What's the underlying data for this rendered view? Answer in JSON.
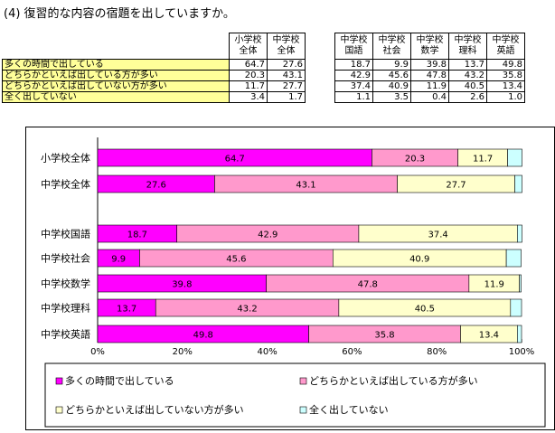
{
  "title": "(4) 復習的な内容の宿題を出していますか。",
  "table": {
    "columns": [
      {
        "line1": "小学校",
        "line2": "全体"
      },
      {
        "line1": "中学校",
        "line2": "全体"
      },
      {
        "line1": "中学校",
        "line2": "国語"
      },
      {
        "line1": "中学校",
        "line2": "社会"
      },
      {
        "line1": "中学校",
        "line2": "数学"
      },
      {
        "line1": "中学校",
        "line2": "理科"
      },
      {
        "line1": "中学校",
        "line2": "英語"
      }
    ],
    "rows": [
      {
        "label": "多くの時間で出している",
        "values": [
          "64.7",
          "27.6",
          "18.7",
          "9.9",
          "39.8",
          "13.7",
          "49.8"
        ]
      },
      {
        "label": "どちらかといえば出している方が多い",
        "values": [
          "20.3",
          "43.1",
          "42.9",
          "45.6",
          "47.8",
          "43.2",
          "35.8"
        ]
      },
      {
        "label": "どちらかといえば出していない方が多い",
        "values": [
          "11.7",
          "27.7",
          "37.4",
          "40.9",
          "11.9",
          "40.5",
          "13.4"
        ]
      },
      {
        "label": "全く出していない",
        "values": [
          "3.4",
          "1.7",
          "1.1",
          "3.5",
          "0.4",
          "2.6",
          "1.0"
        ]
      }
    ]
  },
  "chart_data": {
    "type": "bar",
    "orientation": "horizontal",
    "stacked": true,
    "categories": [
      "小学校全体",
      "中学校全体",
      "中学校国語",
      "中学校社会",
      "中学校数学",
      "中学校理科",
      "中学校英語"
    ],
    "series": [
      {
        "name": "多くの時間で出している",
        "color": "#ff00ff",
        "values": [
          64.7,
          27.6,
          18.7,
          9.9,
          39.8,
          13.7,
          49.8
        ]
      },
      {
        "name": "どちらかといえば出している方が多い",
        "color": "#ff99cc",
        "values": [
          20.3,
          43.1,
          42.9,
          45.6,
          47.8,
          43.2,
          35.8
        ]
      },
      {
        "name": "どちらかといえば出していない方が多い",
        "color": "#ffffcc",
        "values": [
          11.7,
          27.7,
          37.4,
          40.9,
          11.9,
          40.5,
          13.4
        ]
      },
      {
        "name": "全く出していない",
        "color": "#ccffff",
        "values": [
          3.4,
          1.7,
          1.1,
          3.5,
          0.4,
          2.6,
          1.0
        ]
      }
    ],
    "data_labels_shown_for_series": [
      0,
      1,
      2
    ],
    "x_ticks": [
      "0%",
      "20%",
      "40%",
      "60%",
      "80%",
      "100%"
    ],
    "xlim": [
      0,
      100
    ],
    "grid": false,
    "legend_position": "bottom"
  }
}
